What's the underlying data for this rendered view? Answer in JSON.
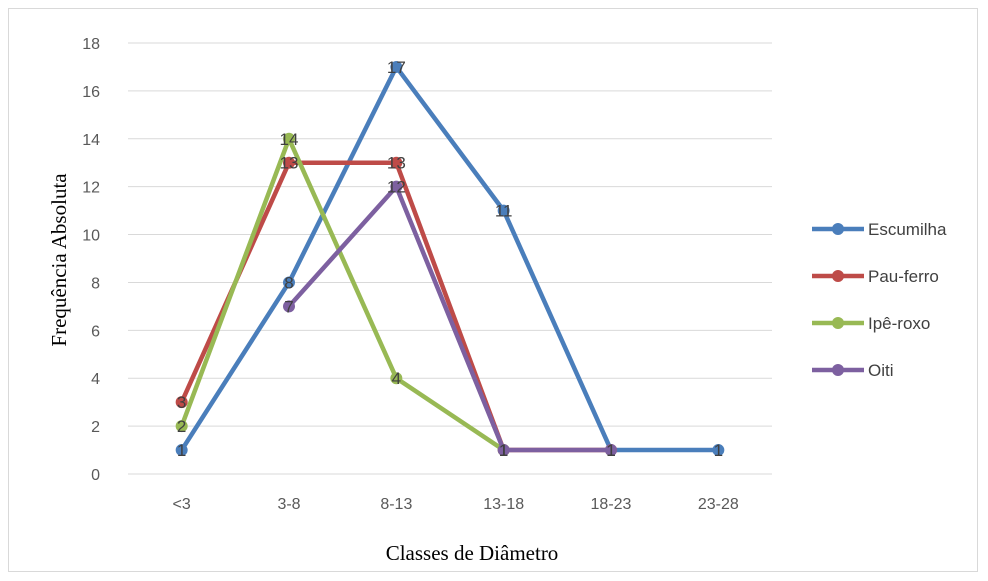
{
  "chart_data": {
    "type": "line",
    "title": "",
    "xlabel": "Classes de Diâmetro",
    "ylabel": "Frequência Absoluta",
    "categories": [
      "<3",
      "3-8",
      "8-13",
      "13-18",
      "18-23",
      "23-28"
    ],
    "ylim": [
      0,
      18
    ],
    "yticks": [
      0,
      2,
      4,
      6,
      8,
      10,
      12,
      14,
      16,
      18
    ],
    "grid": true,
    "legend_position": "right",
    "series": [
      {
        "name": "Escumilha",
        "color": "#4a7ebb",
        "values": [
          1,
          8,
          17,
          11,
          1,
          1
        ]
      },
      {
        "name": "Pau-ferro",
        "color": "#be4b48",
        "values": [
          3,
          13,
          13,
          1,
          1,
          null
        ]
      },
      {
        "name": "Ipê-roxo",
        "color": "#98b954",
        "values": [
          2,
          14,
          4,
          1,
          null,
          null
        ]
      },
      {
        "name": "Oiti",
        "color": "#7d60a0",
        "values": [
          null,
          7,
          12,
          1,
          1,
          null
        ]
      }
    ]
  }
}
